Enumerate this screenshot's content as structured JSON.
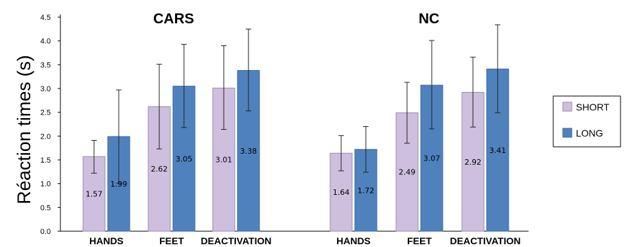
{
  "chart_data": {
    "type": "bar",
    "ylabel": "Réaction times (s)",
    "ylim": [
      0,
      4.5
    ],
    "yticks": [
      "0.0",
      "0.5",
      "1.0",
      "1.5",
      "2.0",
      "2.5",
      "3.0",
      "3.5",
      "4.0",
      "4.5"
    ],
    "legend_position": "right",
    "colors": {
      "SHORT": "#cdbfdd",
      "LONG": "#4f81bd"
    },
    "groups": [
      {
        "title": "CARS",
        "categories": [
          "HANDS",
          "FEET",
          "DEACTIVATION"
        ],
        "series": [
          {
            "name": "SHORT",
            "values": [
              1.57,
              2.62,
              3.01
            ],
            "err_low": [
              1.22,
              1.73,
              2.14
            ],
            "err_high": [
              1.91,
              3.51,
              3.9
            ]
          },
          {
            "name": "LONG",
            "values": [
              1.99,
              3.05,
              3.38
            ],
            "err_low": [
              1.01,
              2.18,
              2.53
            ],
            "err_high": [
              2.97,
              3.93,
              4.25
            ]
          }
        ]
      },
      {
        "title": "NC",
        "categories": [
          "HANDS",
          "FEET",
          "DEACTIVATION"
        ],
        "series": [
          {
            "name": "SHORT",
            "values": [
              1.64,
              2.49,
              2.92
            ],
            "err_low": [
              1.27,
              1.85,
              2.19
            ],
            "err_high": [
              2.01,
              3.13,
              3.66
            ]
          },
          {
            "name": "LONG",
            "values": [
              1.72,
              3.07,
              3.41
            ],
            "err_low": [
              1.24,
              2.15,
              2.49
            ],
            "err_high": [
              2.2,
              4.01,
              4.34
            ]
          }
        ]
      }
    ]
  }
}
